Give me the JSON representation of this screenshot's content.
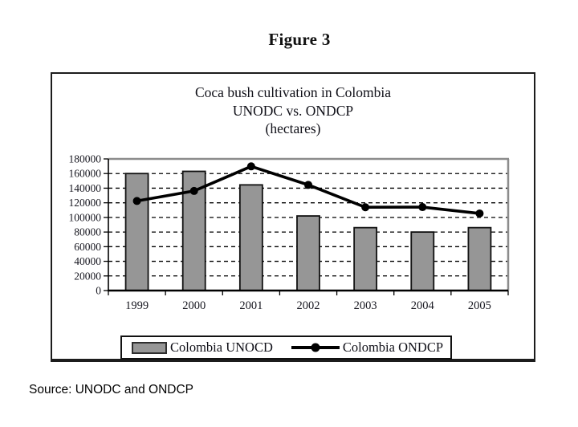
{
  "figure": {
    "title": "Figure 3"
  },
  "chart": {
    "title_line1": "Coca bush cultivation in Colombia",
    "title_line2": "UNODC vs. ONDCP",
    "title_line3": "(hectares)"
  },
  "legend": {
    "series1": "Colombia UNOCD",
    "series2": "Colombia ONDCP"
  },
  "source": "Source: UNODC and ONDCP",
  "chart_data": {
    "type": "bar",
    "title": "Coca bush cultivation in Colombia UNODC vs. ONDCP (hectares)",
    "categories": [
      "1999",
      "2000",
      "2001",
      "2002",
      "2003",
      "2004",
      "2005"
    ],
    "series": [
      {
        "name": "Colombia UNOCD",
        "type": "bar",
        "values": [
          160000,
          163000,
          144500,
          102000,
          86000,
          80000,
          86000
        ],
        "color": "#969696"
      },
      {
        "name": "Colombia ONDCP",
        "type": "line",
        "values": [
          122500,
          136200,
          169800,
          144500,
          113900,
          114100,
          105400
        ],
        "color": "#000000"
      }
    ],
    "xlabel": "",
    "ylabel": "",
    "ylim": [
      0,
      180000
    ],
    "yticks": [
      0,
      20000,
      40000,
      60000,
      80000,
      100000,
      120000,
      140000,
      160000,
      180000
    ],
    "grid": "dashed-horizontal",
    "legend_position": "bottom"
  }
}
